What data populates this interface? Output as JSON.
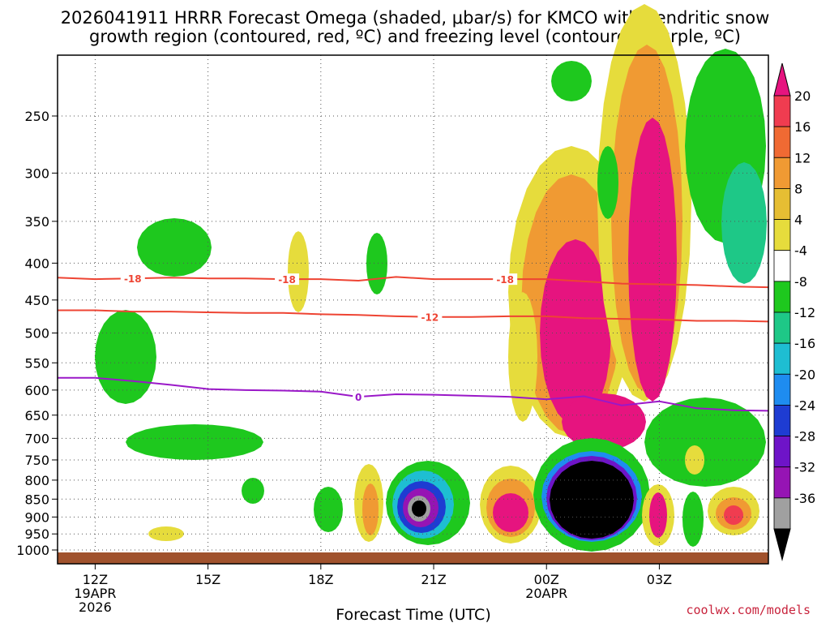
{
  "title_line1": "2026041911 HRRR Forecast Omega (shaded, μbar/s) for KMCO with dendritic snow",
  "title_line2": "growth region (contoured, red, ºC) and freezing level (contoured, purple, ºC)",
  "credit": "coolwx.com/models",
  "chart_data": {
    "type": "time-height cross section",
    "title": "2026041911 HRRR Forecast Omega (shaded, μbar/s) for KMCO with dendritic snow growth region (contoured, red, ºC) and freezing level (contoured, purple, ºC)",
    "xlabel": "Forecast Time (UTC)",
    "ylabel": "",
    "y_ticks": [
      250,
      300,
      350,
      400,
      450,
      500,
      550,
      600,
      650,
      700,
      750,
      800,
      850,
      900,
      950,
      1000
    ],
    "x_ticks": [
      {
        "hour": 12,
        "label": "12Z",
        "sub1": "19APR",
        "sub2": "2026"
      },
      {
        "hour": 15,
        "label": "15Z",
        "sub1": "",
        "sub2": ""
      },
      {
        "hour": 18,
        "label": "18Z",
        "sub1": "",
        "sub2": ""
      },
      {
        "hour": 21,
        "label": "21Z",
        "sub1": "",
        "sub2": ""
      },
      {
        "hour": 24,
        "label": "00Z",
        "sub1": "20APR",
        "sub2": ""
      },
      {
        "hour": 27,
        "label": "03Z",
        "sub1": "",
        "sub2": ""
      }
    ],
    "x_range": [
      11,
      29.9
    ],
    "y_range": [
      1050,
      200
    ],
    "colorbar": {
      "labels": [
        "20",
        "16",
        "12",
        "8",
        "4",
        "-4",
        "-8",
        "-12",
        "-16",
        "-20",
        "-24",
        "-28",
        "-32",
        "-36"
      ],
      "colors": [
        "#f03c50",
        "#f06a33",
        "#f09a33",
        "#e6be33",
        "#e6dc3c",
        "#ffffff",
        "#1ec81e",
        "#1ec887",
        "#1ebed2",
        "#1e8cf0",
        "#1e3cd2",
        "#6e14c8",
        "#9614b4",
        "#a0a0a0",
        "#000000"
      ],
      "top_color": "#e6147f"
    },
    "temperature_contours": [
      {
        "label": "-18",
        "color": "#ee4433",
        "points": [
          [
            11,
            419
          ],
          [
            12,
            421
          ],
          [
            13,
            420
          ],
          [
            14,
            419
          ],
          [
            15,
            420
          ],
          [
            16,
            420
          ],
          [
            17,
            421
          ],
          [
            18,
            421
          ],
          [
            19,
            423
          ],
          [
            20,
            418
          ],
          [
            21,
            421
          ],
          [
            22,
            421
          ],
          [
            23,
            421
          ],
          [
            24,
            421
          ],
          [
            25,
            424
          ],
          [
            26,
            427
          ],
          [
            27,
            428
          ],
          [
            28,
            429
          ],
          [
            29,
            431
          ],
          [
            29.9,
            432
          ]
        ]
      },
      {
        "label": "-12",
        "color": "#ee4433",
        "points": [
          [
            11,
            465
          ],
          [
            12,
            465
          ],
          [
            13,
            467
          ],
          [
            14,
            467
          ],
          [
            15,
            468
          ],
          [
            16,
            469
          ],
          [
            17,
            469
          ],
          [
            18,
            471
          ],
          [
            19,
            472
          ],
          [
            20,
            474
          ],
          [
            21,
            475
          ],
          [
            22,
            475
          ],
          [
            23,
            474
          ],
          [
            24,
            474
          ],
          [
            25,
            477
          ],
          [
            26,
            478
          ],
          [
            27,
            479
          ],
          [
            28,
            481
          ],
          [
            29,
            481
          ],
          [
            29.9,
            482
          ]
        ]
      },
      {
        "label": "0",
        "color": "#9a18c8",
        "points": [
          [
            11,
            577
          ],
          [
            12,
            577
          ],
          [
            13,
            583
          ],
          [
            14,
            590
          ],
          [
            15,
            598
          ],
          [
            16,
            600
          ],
          [
            17,
            601
          ],
          [
            18,
            603
          ],
          [
            19,
            613
          ],
          [
            20,
            608
          ],
          [
            21,
            609
          ],
          [
            22,
            611
          ],
          [
            23,
            613
          ],
          [
            24,
            618
          ],
          [
            25,
            612
          ],
          [
            26,
            630
          ],
          [
            27,
            622
          ],
          [
            28,
            636
          ],
          [
            29,
            640
          ],
          [
            29.9,
            641
          ]
        ]
      }
    ],
    "contour_labels": [
      {
        "text": "-18",
        "hour": 13.0,
        "p": 420,
        "color": "#ee4433"
      },
      {
        "text": "-18",
        "hour": 17.1,
        "p": 421,
        "color": "#ee4433"
      },
      {
        "text": "-18",
        "hour": 22.9,
        "p": 421,
        "color": "#ee4433"
      },
      {
        "text": "-12",
        "hour": 20.9,
        "p": 475,
        "color": "#ee4433"
      },
      {
        "text": "0",
        "hour": 19.0,
        "p": 613,
        "color": "#9a18c8"
      }
    ]
  }
}
